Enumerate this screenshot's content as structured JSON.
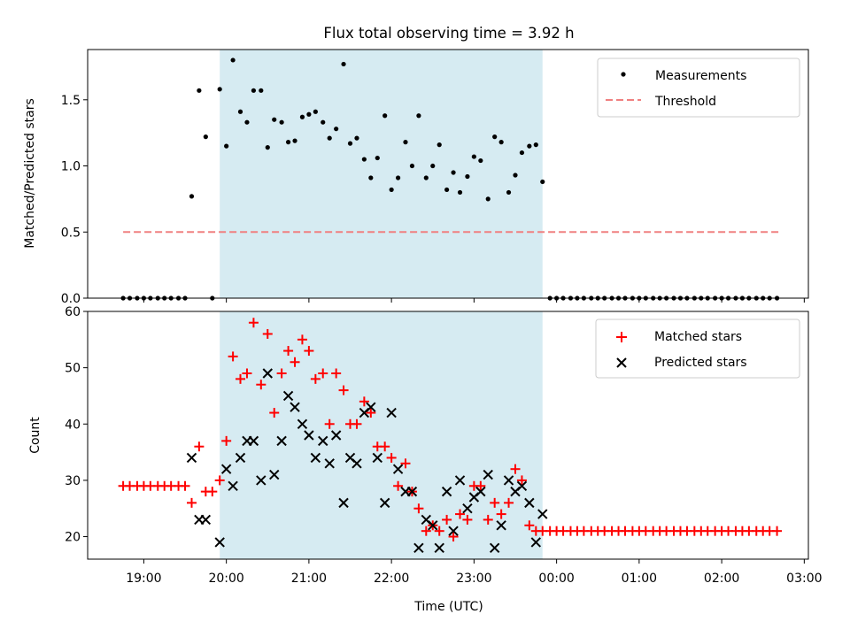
{
  "title": "Flux total observing time = 3.92 h",
  "xlabel": "Time (UTC)",
  "x_ticks": [
    "19:00",
    "20:00",
    "21:00",
    "22:00",
    "23:00",
    "00:00",
    "01:00",
    "02:00",
    "03:00"
  ],
  "x_tick_hours": [
    19,
    20,
    21,
    22,
    23,
    24,
    25,
    26,
    27
  ],
  "xlim_hours": [
    18.32,
    27.05
  ],
  "observing_window_hours": [
    19.92,
    23.83
  ],
  "colors": {
    "window": "#add8e6",
    "threshold": "#f08080",
    "matched": "#ff0000",
    "predicted": "#000000",
    "measurement": "#000000"
  },
  "chart_data": [
    {
      "type": "scatter",
      "ylabel": "Matched/Predicted stars",
      "ylim": [
        0,
        1.88
      ],
      "y_ticks": [
        "0.0",
        "0.5",
        "1.0",
        "1.5"
      ],
      "y_tick_values": [
        0,
        0.5,
        1.0,
        1.5
      ],
      "legend_position": "top-right",
      "legend": [
        "Measurements",
        "Threshold"
      ],
      "threshold": {
        "name": "Threshold",
        "value": 0.5,
        "x_range": [
          18.75,
          26.7
        ]
      },
      "measurements": {
        "name": "Measurements",
        "x": [
          18.75,
          18.83,
          18.92,
          19.0,
          19.08,
          19.17,
          19.25,
          19.33,
          19.42,
          19.5,
          19.58,
          19.67,
          19.75,
          19.83,
          19.92,
          20.0,
          20.08,
          20.17,
          20.25,
          20.33,
          20.42,
          20.5,
          20.58,
          20.67,
          20.75,
          20.83,
          20.92,
          21.0,
          21.08,
          21.17,
          21.25,
          21.33,
          21.42,
          21.5,
          21.58,
          21.67,
          21.75,
          21.83,
          21.92,
          22.0,
          22.08,
          22.17,
          22.25,
          22.33,
          22.42,
          22.5,
          22.58,
          22.67,
          22.75,
          22.83,
          22.92,
          23.0,
          23.08,
          23.17,
          23.25,
          23.33,
          23.42,
          23.5,
          23.58,
          23.67,
          23.75,
          23.83,
          23.92,
          24.0,
          24.08,
          24.17,
          24.25,
          24.33,
          24.42,
          24.5,
          24.58,
          24.67,
          24.75,
          24.83,
          24.92,
          25.0,
          25.08,
          25.17,
          25.25,
          25.33,
          25.42,
          25.5,
          25.58,
          25.67,
          25.75,
          25.83,
          25.92,
          26.0,
          26.08,
          26.17,
          26.25,
          26.33,
          26.42,
          26.5,
          26.58,
          26.67
        ],
        "y": [
          0,
          0,
          0,
          0,
          0,
          0,
          0,
          0,
          0,
          0,
          0.77,
          1.57,
          1.22,
          0,
          1.58,
          1.15,
          1.8,
          1.41,
          1.33,
          1.57,
          1.57,
          1.14,
          1.35,
          1.33,
          1.18,
          1.19,
          1.37,
          1.39,
          1.41,
          1.33,
          1.21,
          1.28,
          1.77,
          1.17,
          1.21,
          1.05,
          0.91,
          1.06,
          1.38,
          0.82,
          0.91,
          1.18,
          1.0,
          1.38,
          0.91,
          1.0,
          1.16,
          0.82,
          0.95,
          0.8,
          0.92,
          1.07,
          1.04,
          0.75,
          1.22,
          1.18,
          0.8,
          0.93,
          1.1,
          1.15,
          1.16,
          0.88,
          0,
          0,
          0,
          0,
          0,
          0,
          0,
          0,
          0,
          0,
          0,
          0,
          0,
          0,
          0,
          0,
          0,
          0,
          0,
          0,
          0,
          0,
          0,
          0,
          0,
          0,
          0,
          0,
          0,
          0,
          0,
          0,
          0,
          0
        ]
      }
    },
    {
      "type": "scatter",
      "ylabel": "Count",
      "ylim": [
        16,
        60
      ],
      "y_ticks": [
        "20",
        "30",
        "40",
        "50",
        "60"
      ],
      "y_tick_values": [
        20,
        30,
        40,
        50,
        60
      ],
      "legend_position": "top-right",
      "legend": [
        "Matched stars",
        "Predicted stars"
      ],
      "series": [
        {
          "name": "Matched stars",
          "marker": "plus",
          "x": [
            18.75,
            18.83,
            18.92,
            19.0,
            19.08,
            19.17,
            19.25,
            19.33,
            19.42,
            19.5,
            19.58,
            19.67,
            19.75,
            19.83,
            19.92,
            20.0,
            20.08,
            20.17,
            20.25,
            20.33,
            20.42,
            20.5,
            20.58,
            20.67,
            20.75,
            20.83,
            20.92,
            21.0,
            21.08,
            21.17,
            21.25,
            21.33,
            21.42,
            21.5,
            21.58,
            21.67,
            21.75,
            21.83,
            21.92,
            22.0,
            22.08,
            22.17,
            22.25,
            22.33,
            22.42,
            22.5,
            22.58,
            22.67,
            22.75,
            22.83,
            22.92,
            23.0,
            23.08,
            23.17,
            23.25,
            23.33,
            23.42,
            23.5,
            23.58,
            23.67,
            23.75,
            23.83,
            23.92,
            24.0,
            24.08,
            24.17,
            24.25,
            24.33,
            24.42,
            24.5,
            24.58,
            24.67,
            24.75,
            24.83,
            24.92,
            25.0,
            25.08,
            25.17,
            25.25,
            25.33,
            25.42,
            25.5,
            25.58,
            25.67,
            25.75,
            25.83,
            25.92,
            26.0,
            26.08,
            26.17,
            26.25,
            26.33,
            26.42,
            26.5,
            26.58,
            26.67
          ],
          "y": [
            29,
            29,
            29,
            29,
            29,
            29,
            29,
            29,
            29,
            29,
            26,
            36,
            28,
            28,
            30,
            37,
            52,
            48,
            49,
            58,
            47,
            56,
            42,
            49,
            53,
            51,
            55,
            53,
            48,
            49,
            40,
            49,
            46,
            40,
            40,
            44,
            42,
            36,
            36,
            34,
            29,
            33,
            28,
            25,
            21,
            22,
            21,
            23,
            20,
            24,
            23,
            29,
            29,
            23,
            26,
            24,
            26,
            32,
            30,
            22,
            21,
            21,
            21,
            21,
            21,
            21,
            21,
            21,
            21,
            21,
            21,
            21,
            21,
            21,
            21,
            21,
            21,
            21,
            21,
            21,
            21,
            21,
            21,
            21,
            21,
            21,
            21,
            21,
            21,
            21,
            21,
            21,
            21,
            21,
            21,
            21
          ]
        },
        {
          "name": "Predicted stars",
          "marker": "x",
          "x": [
            19.58,
            19.67,
            19.75,
            19.92,
            20.0,
            20.08,
            20.17,
            20.25,
            20.33,
            20.42,
            20.5,
            20.58,
            20.67,
            20.75,
            20.83,
            20.92,
            21.0,
            21.08,
            21.17,
            21.25,
            21.33,
            21.42,
            21.5,
            21.58,
            21.67,
            21.75,
            21.83,
            21.92,
            22.0,
            22.08,
            22.17,
            22.25,
            22.33,
            22.42,
            22.5,
            22.58,
            22.67,
            22.75,
            22.83,
            22.92,
            23.0,
            23.08,
            23.17,
            23.25,
            23.33,
            23.42,
            23.5,
            23.58,
            23.67,
            23.75,
            23.83
          ],
          "y": [
            34,
            23,
            23,
            19,
            32,
            29,
            34,
            37,
            37,
            30,
            49,
            31,
            37,
            45,
            43,
            40,
            38,
            34,
            37,
            33,
            38,
            26,
            34,
            33,
            42,
            43,
            34,
            26,
            42,
            32,
            28,
            28,
            18,
            23,
            22,
            18,
            28,
            21,
            30,
            25,
            27,
            28,
            31,
            18,
            22,
            30,
            28,
            29,
            26,
            19,
            24
          ]
        }
      ]
    }
  ]
}
